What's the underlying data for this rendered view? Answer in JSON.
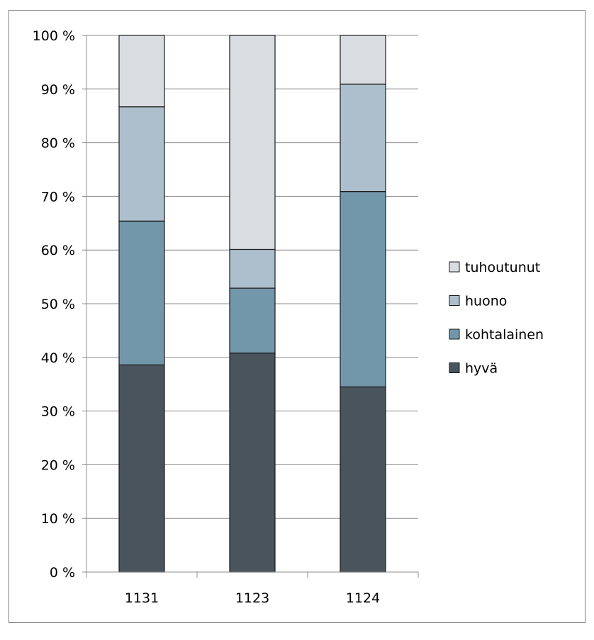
{
  "chart_data": {
    "type": "bar",
    "stacked": true,
    "percent": true,
    "categories": [
      "1131",
      "1123",
      "1124"
    ],
    "series": [
      {
        "name": "hyvä",
        "values": [
          38.6,
          40.8,
          34.5
        ],
        "color": "#49545d"
      },
      {
        "name": "kohtalainen",
        "values": [
          26.8,
          12.1,
          36.4
        ],
        "color": "#7297ab"
      },
      {
        "name": "huono",
        "values": [
          21.3,
          7.2,
          20.0
        ],
        "color": "#adbfcc"
      },
      {
        "name": "tuhoutunut",
        "values": [
          13.3,
          39.9,
          9.1
        ],
        "color": "#d9dde1"
      }
    ],
    "ylim": [
      0,
      100
    ],
    "ytick_labels": [
      "0 %",
      "10 %",
      "20 %",
      "30 %",
      "40 %",
      "50 %",
      "60 %",
      "70 %",
      "80 %",
      "90 %",
      "100 %"
    ],
    "legend_order": [
      "tuhoutunut",
      "huono",
      "kohtalainen",
      "hyvä"
    ],
    "legend_position": "right",
    "grid": true,
    "title": "",
    "xlabel": "",
    "ylabel": ""
  }
}
